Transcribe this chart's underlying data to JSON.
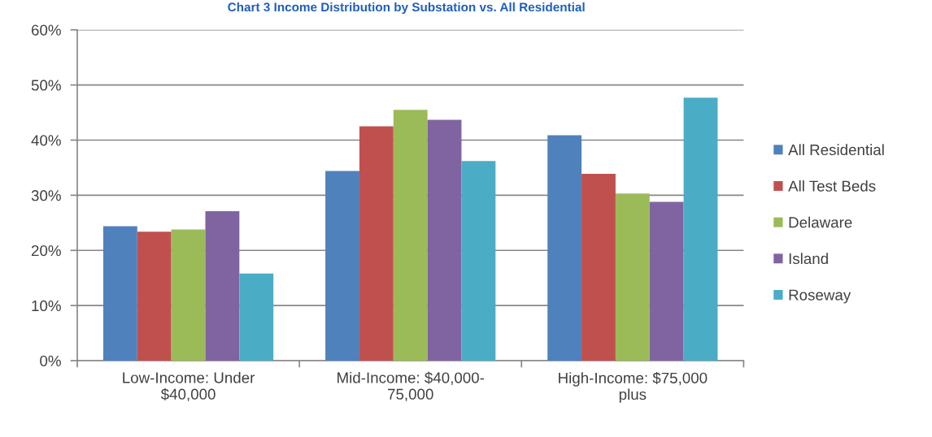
{
  "chart_data": {
    "type": "bar",
    "title": "Chart 3 Income Distribution by Substation vs. All Residential",
    "categories": [
      "Low-Income: Under\n$40,000",
      "Mid-Income: $40,000-\n75,000",
      "High-Income: $75,000\nplus"
    ],
    "series": [
      {
        "name": "All Residential",
        "color": "#4f81bd",
        "values": [
          24.4,
          34.4,
          40.9
        ]
      },
      {
        "name": "All Test Beds",
        "color": "#c0504d",
        "values": [
          23.4,
          42.5,
          33.9
        ]
      },
      {
        "name": "Delaware",
        "color": "#9bbb59",
        "values": [
          23.8,
          45.5,
          30.3
        ]
      },
      {
        "name": "Island",
        "color": "#8064a2",
        "values": [
          27.1,
          43.7,
          28.8
        ]
      },
      {
        "name": "Roseway",
        "color": "#4bacc6",
        "values": [
          15.8,
          36.2,
          47.7
        ]
      }
    ],
    "ylim": [
      0,
      60
    ],
    "yticks": [
      {
        "value": 0,
        "label": "0%"
      },
      {
        "value": 10,
        "label": "10%"
      },
      {
        "value": 20,
        "label": "20%"
      },
      {
        "value": 30,
        "label": "30%"
      },
      {
        "value": 40,
        "label": "40%"
      },
      {
        "value": 50,
        "label": "50%"
      },
      {
        "value": 60,
        "label": "60%"
      }
    ],
    "grid": "y",
    "legend": "right"
  }
}
